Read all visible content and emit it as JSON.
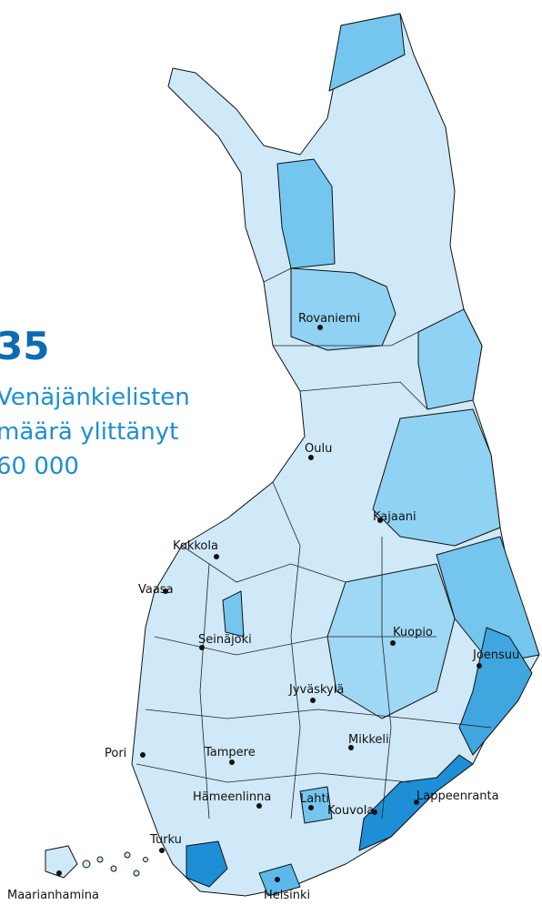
{
  "headline": {
    "number": "35",
    "lines": [
      "Venäjänkielisten",
      "määrä ylittänyt",
      "60 000"
    ]
  },
  "cities": [
    "Rovaniemi",
    "Oulu",
    "Kajaani",
    "Kokkola",
    "Vaasa",
    "Seinäjoki",
    "Kuopio",
    "Joensuu",
    "Jyväskylä",
    "Mikkeli",
    "Pori",
    "Tampere",
    "Lappeenranta",
    "Hämeenlinna",
    "Lahti",
    "Kouvola",
    "Turku",
    "Maarianhamina",
    "Helsinki"
  ]
}
